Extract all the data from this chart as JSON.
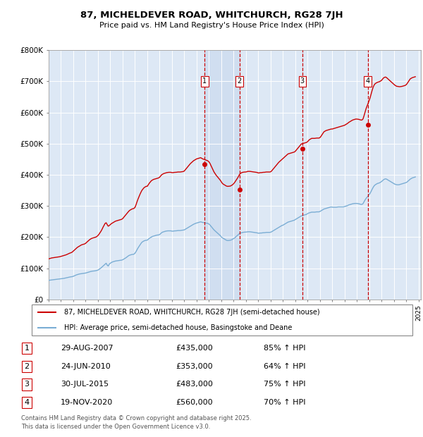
{
  "title": "87, MICHELDEVER ROAD, WHITCHURCH, RG28 7JH",
  "subtitle": "Price paid vs. HM Land Registry's House Price Index (HPI)",
  "ylim": [
    0,
    800000
  ],
  "yticks": [
    0,
    100000,
    200000,
    300000,
    400000,
    500000,
    600000,
    700000,
    800000
  ],
  "ytick_labels": [
    "£0",
    "£100K",
    "£200K",
    "£300K",
    "£400K",
    "£500K",
    "£600K",
    "£700K",
    "£800K"
  ],
  "background_color": "#ffffff",
  "plot_bg_color": "#dde8f5",
  "grid_color": "#b0c4d8",
  "sale_color": "#cc0000",
  "hpi_color": "#7aadd4",
  "vline_color": "#cc0000",
  "shade_color": "#c8d8ee",
  "sale_label": "87, MICHELDEVER ROAD, WHITCHURCH, RG28 7JH (semi-detached house)",
  "hpi_label": "HPI: Average price, semi-detached house, Basingstoke and Deane",
  "transactions": [
    {
      "num": 1,
      "date": "2007-08-29",
      "price": 435000,
      "pct": "85%",
      "dir": "↑"
    },
    {
      "num": 2,
      "date": "2010-06-24",
      "price": 353000,
      "pct": "64%",
      "dir": "↑"
    },
    {
      "num": 3,
      "date": "2015-07-30",
      "price": 483000,
      "pct": "75%",
      "dir": "↑"
    },
    {
      "num": 4,
      "date": "2020-11-19",
      "price": 560000,
      "pct": "70%",
      "dir": "↑"
    }
  ],
  "footer1": "Contains HM Land Registry data © Crown copyright and database right 2025.",
  "footer2": "This data is licensed under the Open Government Licence v3.0.",
  "hpi_data_x": [
    1995.0,
    1995.083,
    1995.167,
    1995.25,
    1995.333,
    1995.417,
    1995.5,
    1995.583,
    1995.667,
    1995.75,
    1995.833,
    1995.917,
    1996.0,
    1996.083,
    1996.167,
    1996.25,
    1996.333,
    1996.417,
    1996.5,
    1996.583,
    1996.667,
    1996.75,
    1996.833,
    1996.917,
    1997.0,
    1997.083,
    1997.167,
    1997.25,
    1997.333,
    1997.417,
    1997.5,
    1997.583,
    1997.667,
    1997.75,
    1997.833,
    1997.917,
    1998.0,
    1998.083,
    1998.167,
    1998.25,
    1998.333,
    1998.417,
    1998.5,
    1998.583,
    1998.667,
    1998.75,
    1998.833,
    1998.917,
    1999.0,
    1999.083,
    1999.167,
    1999.25,
    1999.333,
    1999.417,
    1999.5,
    1999.583,
    1999.667,
    1999.75,
    1999.833,
    1999.917,
    2000.0,
    2000.083,
    2000.167,
    2000.25,
    2000.333,
    2000.417,
    2000.5,
    2000.583,
    2000.667,
    2000.75,
    2000.833,
    2000.917,
    2001.0,
    2001.083,
    2001.167,
    2001.25,
    2001.333,
    2001.417,
    2001.5,
    2001.583,
    2001.667,
    2001.75,
    2001.833,
    2001.917,
    2002.0,
    2002.083,
    2002.167,
    2002.25,
    2002.333,
    2002.417,
    2002.5,
    2002.583,
    2002.667,
    2002.75,
    2002.833,
    2002.917,
    2003.0,
    2003.083,
    2003.167,
    2003.25,
    2003.333,
    2003.417,
    2003.5,
    2003.583,
    2003.667,
    2003.75,
    2003.833,
    2003.917,
    2004.0,
    2004.083,
    2004.167,
    2004.25,
    2004.333,
    2004.417,
    2004.5,
    2004.583,
    2004.667,
    2004.75,
    2004.833,
    2004.917,
    2005.0,
    2005.083,
    2005.167,
    2005.25,
    2005.333,
    2005.417,
    2005.5,
    2005.583,
    2005.667,
    2005.75,
    2005.833,
    2005.917,
    2006.0,
    2006.083,
    2006.167,
    2006.25,
    2006.333,
    2006.417,
    2006.5,
    2006.583,
    2006.667,
    2006.75,
    2006.833,
    2006.917,
    2007.0,
    2007.083,
    2007.167,
    2007.25,
    2007.333,
    2007.417,
    2007.5,
    2007.583,
    2007.667,
    2007.75,
    2007.833,
    2007.917,
    2008.0,
    2008.083,
    2008.167,
    2008.25,
    2008.333,
    2008.417,
    2008.5,
    2008.583,
    2008.667,
    2008.75,
    2008.833,
    2008.917,
    2009.0,
    2009.083,
    2009.167,
    2009.25,
    2009.333,
    2009.417,
    2009.5,
    2009.583,
    2009.667,
    2009.75,
    2009.833,
    2009.917,
    2010.0,
    2010.083,
    2010.167,
    2010.25,
    2010.333,
    2010.417,
    2010.5,
    2010.583,
    2010.667,
    2010.75,
    2010.833,
    2010.917,
    2011.0,
    2011.083,
    2011.167,
    2011.25,
    2011.333,
    2011.417,
    2011.5,
    2011.583,
    2011.667,
    2011.75,
    2011.833,
    2011.917,
    2012.0,
    2012.083,
    2012.167,
    2012.25,
    2012.333,
    2012.417,
    2012.5,
    2012.583,
    2012.667,
    2012.75,
    2012.833,
    2012.917,
    2013.0,
    2013.083,
    2013.167,
    2013.25,
    2013.333,
    2013.417,
    2013.5,
    2013.583,
    2013.667,
    2013.75,
    2013.833,
    2013.917,
    2014.0,
    2014.083,
    2014.167,
    2014.25,
    2014.333,
    2014.417,
    2014.5,
    2014.583,
    2014.667,
    2014.75,
    2014.833,
    2014.917,
    2015.0,
    2015.083,
    2015.167,
    2015.25,
    2015.333,
    2015.417,
    2015.5,
    2015.583,
    2015.667,
    2015.75,
    2015.833,
    2015.917,
    2016.0,
    2016.083,
    2016.167,
    2016.25,
    2016.333,
    2016.417,
    2016.5,
    2016.583,
    2016.667,
    2016.75,
    2016.833,
    2016.917,
    2017.0,
    2017.083,
    2017.167,
    2017.25,
    2017.333,
    2017.417,
    2017.5,
    2017.583,
    2017.667,
    2017.75,
    2017.833,
    2017.917,
    2018.0,
    2018.083,
    2018.167,
    2018.25,
    2018.333,
    2018.417,
    2018.5,
    2018.583,
    2018.667,
    2018.75,
    2018.833,
    2018.917,
    2019.0,
    2019.083,
    2019.167,
    2019.25,
    2019.333,
    2019.417,
    2019.5,
    2019.583,
    2019.667,
    2019.75,
    2019.833,
    2019.917,
    2020.0,
    2020.083,
    2020.167,
    2020.25,
    2020.333,
    2020.417,
    2020.5,
    2020.583,
    2020.667,
    2020.75,
    2020.833,
    2020.917,
    2021.0,
    2021.083,
    2021.167,
    2021.25,
    2021.333,
    2021.417,
    2021.5,
    2021.583,
    2021.667,
    2021.75,
    2021.833,
    2021.917,
    2022.0,
    2022.083,
    2022.167,
    2022.25,
    2022.333,
    2022.417,
    2022.5,
    2022.583,
    2022.667,
    2022.75,
    2022.833,
    2022.917,
    2023.0,
    2023.083,
    2023.167,
    2023.25,
    2023.333,
    2023.417,
    2023.5,
    2023.583,
    2023.667,
    2023.75,
    2023.833,
    2023.917,
    2024.0,
    2024.083,
    2024.167,
    2024.25,
    2024.333,
    2024.417,
    2024.5,
    2024.583,
    2024.667,
    2024.75
  ],
  "hpi_data_y": [
    61000,
    61500,
    62000,
    62500,
    62800,
    63200,
    63500,
    64000,
    64500,
    65000,
    65200,
    65500,
    66000,
    66500,
    67000,
    67500,
    68200,
    69000,
    69800,
    70500,
    71200,
    72000,
    72500,
    73000,
    74000,
    75500,
    77000,
    78500,
    79500,
    80500,
    81500,
    82000,
    82500,
    83000,
    83500,
    84000,
    84500,
    85500,
    86500,
    87500,
    88500,
    89500,
    90200,
    90800,
    91000,
    91500,
    92000,
    93000,
    94000,
    96000,
    98500,
    101000,
    104000,
    107000,
    110000,
    113000,
    116000,
    110000,
    107000,
    113000,
    116000,
    118000,
    120000,
    121000,
    122000,
    123000,
    123500,
    124000,
    124500,
    125000,
    125500,
    126000,
    127000,
    129000,
    131000,
    133000,
    135500,
    138000,
    140500,
    142000,
    143000,
    144000,
    144500,
    145000,
    148000,
    153000,
    159000,
    165000,
    170000,
    175000,
    180000,
    184000,
    186000,
    188000,
    189000,
    190000,
    190000,
    193000,
    196000,
    198000,
    200000,
    202000,
    203000,
    204000,
    205000,
    206000,
    206500,
    207000,
    208000,
    211000,
    214000,
    216000,
    217000,
    218000,
    219000,
    219500,
    220000,
    220000,
    220000,
    220000,
    219000,
    219000,
    219500,
    220000,
    220000,
    220500,
    221000,
    221000,
    221000,
    221500,
    222000,
    222500,
    223000,
    225000,
    227000,
    229000,
    231000,
    233000,
    235000,
    237000,
    239000,
    241000,
    242500,
    244000,
    245000,
    246000,
    247000,
    248000,
    249000,
    248000,
    247000,
    246500,
    246000,
    245000,
    244500,
    244000,
    242000,
    239000,
    235000,
    231000,
    227000,
    223000,
    220000,
    217000,
    214000,
    211000,
    208000,
    205000,
    201000,
    198000,
    196000,
    194000,
    192000,
    190000,
    189000,
    189000,
    189500,
    190000,
    191000,
    193000,
    195000,
    197000,
    200000,
    203000,
    206000,
    209000,
    212000,
    213000,
    214000,
    215000,
    215500,
    216000,
    216000,
    216500,
    217000,
    217000,
    217000,
    216500,
    216000,
    215500,
    215000,
    214500,
    214000,
    213500,
    212500,
    212500,
    213000,
    213000,
    213500,
    214000,
    214000,
    214500,
    215000,
    215000,
    215000,
    215000,
    215500,
    217000,
    219000,
    221000,
    223000,
    225000,
    227000,
    229000,
    231000,
    233000,
    235000,
    237000,
    238000,
    240000,
    242000,
    244000,
    246000,
    248000,
    249000,
    250000,
    251000,
    252000,
    253000,
    254000,
    256000,
    258000,
    260000,
    262000,
    264000,
    266000,
    268000,
    269000,
    270000,
    271000,
    272000,
    273000,
    275000,
    277000,
    278000,
    279000,
    280000,
    280000,
    280000,
    280000,
    280500,
    281000,
    281000,
    281000,
    282000,
    284000,
    286000,
    288000,
    290000,
    291000,
    292000,
    293000,
    294000,
    295000,
    296000,
    297000,
    296000,
    296000,
    296000,
    296000,
    296000,
    296500,
    297000,
    297000,
    297000,
    297000,
    297000,
    297000,
    298000,
    299000,
    300000,
    301000,
    303000,
    304000,
    305000,
    306000,
    307000,
    307500,
    308000,
    308000,
    308000,
    307500,
    307000,
    306000,
    305000,
    305000,
    307000,
    313000,
    319000,
    324000,
    328000,
    332000,
    336000,
    341000,
    347000,
    354000,
    360000,
    365000,
    368000,
    370000,
    372000,
    373000,
    374000,
    376000,
    378000,
    381000,
    384000,
    386000,
    387000,
    386000,
    384000,
    382000,
    380000,
    378000,
    376000,
    374000,
    372000,
    370000,
    369000,
    368000,
    368000,
    368000,
    369000,
    370000,
    371000,
    372000,
    373000,
    374000,
    375000,
    377000,
    380000,
    383000,
    386000,
    388000,
    390000,
    391000,
    392000,
    393000
  ],
  "sale_data_x": [
    1995.0,
    1995.083,
    1995.167,
    1995.25,
    1995.333,
    1995.417,
    1995.5,
    1995.583,
    1995.667,
    1995.75,
    1995.833,
    1995.917,
    1996.0,
    1996.083,
    1996.167,
    1996.25,
    1996.333,
    1996.417,
    1996.5,
    1996.583,
    1996.667,
    1996.75,
    1996.833,
    1996.917,
    1997.0,
    1997.083,
    1997.167,
    1997.25,
    1997.333,
    1997.417,
    1997.5,
    1997.583,
    1997.667,
    1997.75,
    1997.833,
    1997.917,
    1998.0,
    1998.083,
    1998.167,
    1998.25,
    1998.333,
    1998.417,
    1998.5,
    1998.583,
    1998.667,
    1998.75,
    1998.833,
    1998.917,
    1999.0,
    1999.083,
    1999.167,
    1999.25,
    1999.333,
    1999.417,
    1999.5,
    1999.583,
    1999.667,
    1999.75,
    1999.833,
    1999.917,
    2000.0,
    2000.083,
    2000.167,
    2000.25,
    2000.333,
    2000.417,
    2000.5,
    2000.583,
    2000.667,
    2000.75,
    2000.833,
    2000.917,
    2001.0,
    2001.083,
    2001.167,
    2001.25,
    2001.333,
    2001.417,
    2001.5,
    2001.583,
    2001.667,
    2001.75,
    2001.833,
    2001.917,
    2002.0,
    2002.083,
    2002.167,
    2002.25,
    2002.333,
    2002.417,
    2002.5,
    2002.583,
    2002.667,
    2002.75,
    2002.833,
    2002.917,
    2003.0,
    2003.083,
    2003.167,
    2003.25,
    2003.333,
    2003.417,
    2003.5,
    2003.583,
    2003.667,
    2003.75,
    2003.833,
    2003.917,
    2004.0,
    2004.083,
    2004.167,
    2004.25,
    2004.333,
    2004.417,
    2004.5,
    2004.583,
    2004.667,
    2004.75,
    2004.833,
    2004.917,
    2005.0,
    2005.083,
    2005.167,
    2005.25,
    2005.333,
    2005.417,
    2005.5,
    2005.583,
    2005.667,
    2005.75,
    2005.833,
    2005.917,
    2006.0,
    2006.083,
    2006.167,
    2006.25,
    2006.333,
    2006.417,
    2006.5,
    2006.583,
    2006.667,
    2006.75,
    2006.833,
    2006.917,
    2007.0,
    2007.083,
    2007.167,
    2007.25,
    2007.333,
    2007.417,
    2007.5,
    2007.583,
    2007.667,
    2007.75,
    2007.833,
    2007.917,
    2008.0,
    2008.083,
    2008.167,
    2008.25,
    2008.333,
    2008.417,
    2008.5,
    2008.583,
    2008.667,
    2008.75,
    2008.833,
    2008.917,
    2009.0,
    2009.083,
    2009.167,
    2009.25,
    2009.333,
    2009.417,
    2009.5,
    2009.583,
    2009.667,
    2009.75,
    2009.833,
    2009.917,
    2010.0,
    2010.083,
    2010.167,
    2010.25,
    2010.333,
    2010.417,
    2010.5,
    2010.583,
    2010.667,
    2010.75,
    2010.833,
    2010.917,
    2011.0,
    2011.083,
    2011.167,
    2011.25,
    2011.333,
    2011.417,
    2011.5,
    2011.583,
    2011.667,
    2011.75,
    2011.833,
    2011.917,
    2012.0,
    2012.083,
    2012.167,
    2012.25,
    2012.333,
    2012.417,
    2012.5,
    2012.583,
    2012.667,
    2012.75,
    2012.833,
    2012.917,
    2013.0,
    2013.083,
    2013.167,
    2013.25,
    2013.333,
    2013.417,
    2013.5,
    2013.583,
    2013.667,
    2013.75,
    2013.833,
    2013.917,
    2014.0,
    2014.083,
    2014.167,
    2014.25,
    2014.333,
    2014.417,
    2014.5,
    2014.583,
    2014.667,
    2014.75,
    2014.833,
    2014.917,
    2015.0,
    2015.083,
    2015.167,
    2015.25,
    2015.333,
    2015.417,
    2015.5,
    2015.583,
    2015.667,
    2015.75,
    2015.833,
    2015.917,
    2016.0,
    2016.083,
    2016.167,
    2016.25,
    2016.333,
    2016.417,
    2016.5,
    2016.583,
    2016.667,
    2016.75,
    2016.833,
    2016.917,
    2017.0,
    2017.083,
    2017.167,
    2017.25,
    2017.333,
    2017.417,
    2017.5,
    2017.583,
    2017.667,
    2017.75,
    2017.833,
    2017.917,
    2018.0,
    2018.083,
    2018.167,
    2018.25,
    2018.333,
    2018.417,
    2018.5,
    2018.583,
    2018.667,
    2018.75,
    2018.833,
    2018.917,
    2019.0,
    2019.083,
    2019.167,
    2019.25,
    2019.333,
    2019.417,
    2019.5,
    2019.583,
    2019.667,
    2019.75,
    2019.833,
    2019.917,
    2020.0,
    2020.083,
    2020.167,
    2020.25,
    2020.333,
    2020.417,
    2020.5,
    2020.583,
    2020.667,
    2020.75,
    2020.833,
    2020.917,
    2021.0,
    2021.083,
    2021.167,
    2021.25,
    2021.333,
    2021.417,
    2021.5,
    2021.583,
    2021.667,
    2021.75,
    2021.833,
    2021.917,
    2022.0,
    2022.083,
    2022.167,
    2022.25,
    2022.333,
    2022.417,
    2022.5,
    2022.583,
    2022.667,
    2022.75,
    2022.833,
    2022.917,
    2023.0,
    2023.083,
    2023.167,
    2023.25,
    2023.333,
    2023.417,
    2023.5,
    2023.583,
    2023.667,
    2023.75,
    2023.833,
    2023.917,
    2024.0,
    2024.083,
    2024.167,
    2024.25,
    2024.333,
    2024.417,
    2024.5,
    2024.583,
    2024.667,
    2024.75
  ],
  "sale_data_y": [
    130000,
    131000,
    132000,
    133000,
    133500,
    134000,
    134500,
    135000,
    135500,
    136000,
    136500,
    137000,
    138000,
    139000,
    140000,
    141000,
    142000,
    143000,
    144500,
    146000,
    147500,
    149000,
    150000,
    152000,
    155000,
    158000,
    161000,
    164000,
    167000,
    169000,
    171000,
    173000,
    175000,
    176000,
    177000,
    178000,
    180000,
    183000,
    186000,
    189000,
    192000,
    194000,
    196000,
    197000,
    198000,
    199000,
    200000,
    202000,
    205000,
    209000,
    214000,
    219000,
    225000,
    232000,
    238000,
    244000,
    246000,
    240000,
    235000,
    237000,
    240000,
    243000,
    245000,
    247000,
    249000,
    251000,
    252000,
    253000,
    254000,
    255000,
    256000,
    257000,
    259000,
    263000,
    267000,
    271000,
    275000,
    279000,
    283000,
    286000,
    288000,
    290000,
    291000,
    292000,
    295000,
    303000,
    313000,
    322000,
    330000,
    338000,
    345000,
    351000,
    355000,
    359000,
    361000,
    363000,
    363000,
    368000,
    373000,
    377000,
    381000,
    383000,
    385000,
    386000,
    387000,
    388000,
    389000,
    390000,
    392000,
    396000,
    400000,
    402000,
    404000,
    405000,
    406000,
    407000,
    407500,
    408000,
    408000,
    408000,
    407000,
    407000,
    407500,
    408000,
    408000,
    408500,
    409000,
    409000,
    409000,
    409500,
    410000,
    410500,
    412000,
    416000,
    420000,
    424000,
    428000,
    432000,
    436000,
    439000,
    442000,
    445000,
    447000,
    449000,
    451000,
    452000,
    453000,
    454000,
    455000,
    453000,
    451000,
    450000,
    449000,
    447500,
    446000,
    445000,
    442000,
    437000,
    430000,
    423000,
    416000,
    409000,
    404000,
    399000,
    395000,
    391000,
    387000,
    383000,
    378000,
    373000,
    370000,
    368000,
    366000,
    364000,
    363000,
    363000,
    363500,
    364000,
    366000,
    368000,
    371000,
    375000,
    380000,
    385000,
    390000,
    396000,
    402000,
    405000,
    407000,
    408000,
    408500,
    409000,
    409000,
    410000,
    411000,
    411000,
    411000,
    410500,
    410000,
    409500,
    409000,
    408500,
    408000,
    407500,
    406000,
    406000,
    407000,
    407000,
    407500,
    408000,
    408000,
    408500,
    409000,
    409000,
    409000,
    409000,
    409500,
    412000,
    416000,
    420000,
    424000,
    428000,
    432000,
    436000,
    440000,
    443000,
    446000,
    449000,
    452000,
    455000,
    458000,
    461000,
    464000,
    467000,
    468000,
    469000,
    470000,
    471000,
    472000,
    473000,
    475000,
    479000,
    483000,
    487000,
    491000,
    495000,
    499000,
    500000,
    501000,
    502000,
    503000,
    504000,
    506000,
    510000,
    513000,
    515000,
    517000,
    517000,
    517000,
    517000,
    517500,
    518000,
    518000,
    518000,
    519000,
    523000,
    528000,
    533000,
    538000,
    540000,
    542000,
    543000,
    544000,
    545000,
    546000,
    547000,
    547000,
    548000,
    549000,
    550000,
    551000,
    552000,
    553000,
    554000,
    555000,
    556000,
    557000,
    558000,
    559000,
    561000,
    563000,
    565000,
    568000,
    570000,
    572000,
    574000,
    576000,
    577000,
    578000,
    579000,
    579000,
    578500,
    578000,
    577000,
    576000,
    576000,
    579000,
    589000,
    601000,
    612000,
    621000,
    629000,
    638000,
    648000,
    660000,
    672000,
    682000,
    689000,
    693000,
    695000,
    697000,
    698000,
    699000,
    701000,
    703000,
    707000,
    711000,
    713000,
    714000,
    712000,
    709000,
    706000,
    703000,
    700000,
    697000,
    694000,
    691000,
    688000,
    686000,
    684000,
    684000,
    683000,
    683000,
    683500,
    684000,
    685000,
    686000,
    687000,
    689000,
    693000,
    698000,
    703000,
    708000,
    710000,
    712000,
    713000,
    714000,
    715000
  ]
}
